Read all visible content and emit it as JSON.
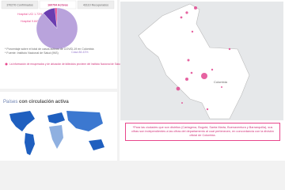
{
  "tabs": [
    "370270 Confirmados",
    "160794 Activos",
    "43110 Recuperados"
  ],
  "chart_data": {
    "type": "pie",
    "categories": [
      "Hospital UCI",
      "Hospital",
      "Casa"
    ],
    "values": [
      1.73,
      9.84,
      88.43
    ],
    "value_labels": [
      "1.73%",
      "9.84%",
      "88.43%"
    ],
    "colors": [
      "#e8468c",
      "#6a3db0",
      "#b9a3dc"
    ]
  },
  "notes": [
    "* Porcentaje sobre el total de casos activos de COVID-19 en Colombia",
    "* Fuente: Instituto Nacional de Salud (INS)"
  ],
  "alert": "La información de recuperados y de ubicación de fallecidos proviene del Instituto Nacional de Salud y Ministerio de Salud",
  "countries": {
    "title_plain": "Países",
    "title_bold": "con circulación activa"
  },
  "map": {
    "label": "Colombia"
  },
  "caption": "*Para las ciudades que son distritos (Cartagena, Bogotá, Santa Marta, Buenaventura y Barranquilla), sus cifras son independientes a las cifras del departamento al cual pertenecen, en concordancia con la división oficial de Colombia."
}
